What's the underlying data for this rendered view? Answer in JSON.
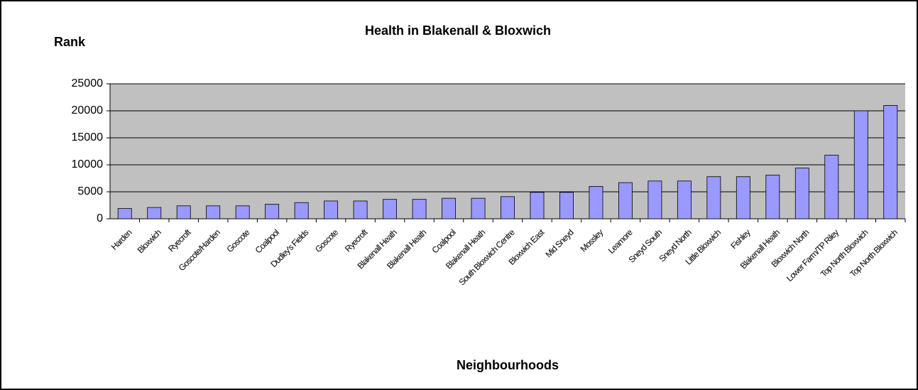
{
  "chart_data": {
    "type": "bar",
    "title": "Health in Blakenall & Bloxwich",
    "y_label": "Rank",
    "x_label": "Neighbourhoods",
    "categories": [
      "Harden",
      "Bloxwich",
      "Ryecroft",
      "Goscote/Harden",
      "Goscote",
      "Coalpool",
      "Dudley's Fields",
      "Goscote",
      "Ryecroft",
      "Blakenall Heath",
      "Blakenall Heath",
      "Coalpool",
      "Blakenall Heath",
      "South Bloxwich Centre",
      "Bloxwich East",
      "Mid Sneyd",
      "Mossley",
      "Leamore",
      "Sneyd South",
      "Sneyd North",
      "Little Bloxwich",
      "Fishley",
      "Blakenall Heath",
      "Bloxwich North",
      "Lower Farm/TP Riley",
      "Top North Bloxwich",
      "Top North Bloxwich"
    ],
    "values": [
      1900,
      2100,
      2400,
      2400,
      2400,
      2700,
      3000,
      3300,
      3300,
      3600,
      3600,
      3800,
      3800,
      4100,
      4900,
      4900,
      6000,
      6700,
      7000,
      7000,
      7800,
      7800,
      8100,
      9400,
      11800,
      20000,
      21000
    ],
    "color": "#9999ff",
    "ylim": [
      0,
      25000
    ],
    "yticks": [
      0,
      5000,
      10000,
      15000,
      20000,
      25000
    ],
    "grid": true
  }
}
